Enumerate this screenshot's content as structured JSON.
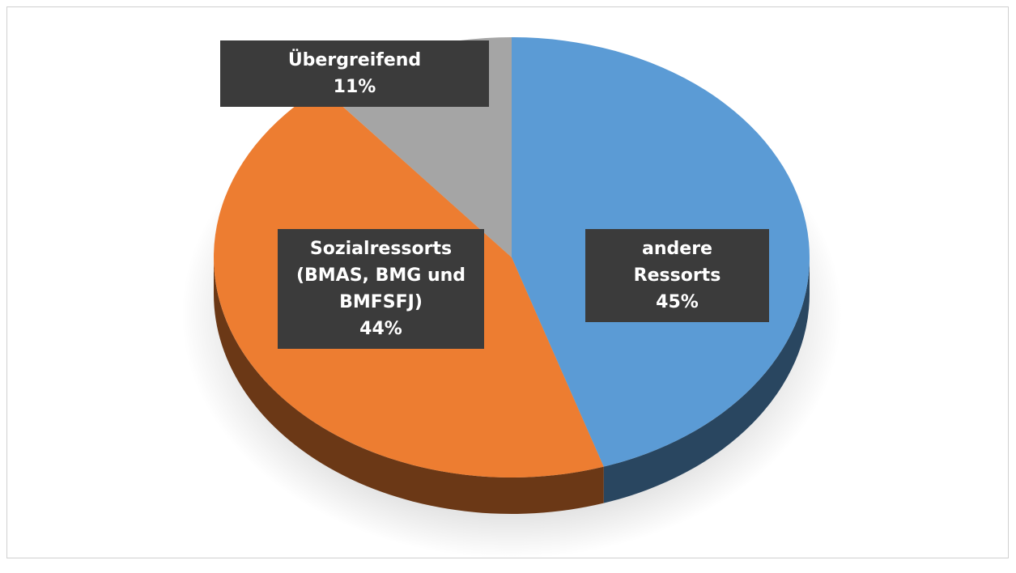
{
  "chart_data": {
    "type": "pie",
    "categories": [
      "andere Ressorts",
      "Sozialressorts (BMAS, BMG und BMFSFJ)",
      "Übergreifend"
    ],
    "values": [
      45,
      44,
      11
    ],
    "value_labels": [
      "45%",
      "44%",
      "11%"
    ],
    "colors": [
      "#5b9bd5",
      "#ed7d31",
      "#a5a5a5"
    ]
  }
}
